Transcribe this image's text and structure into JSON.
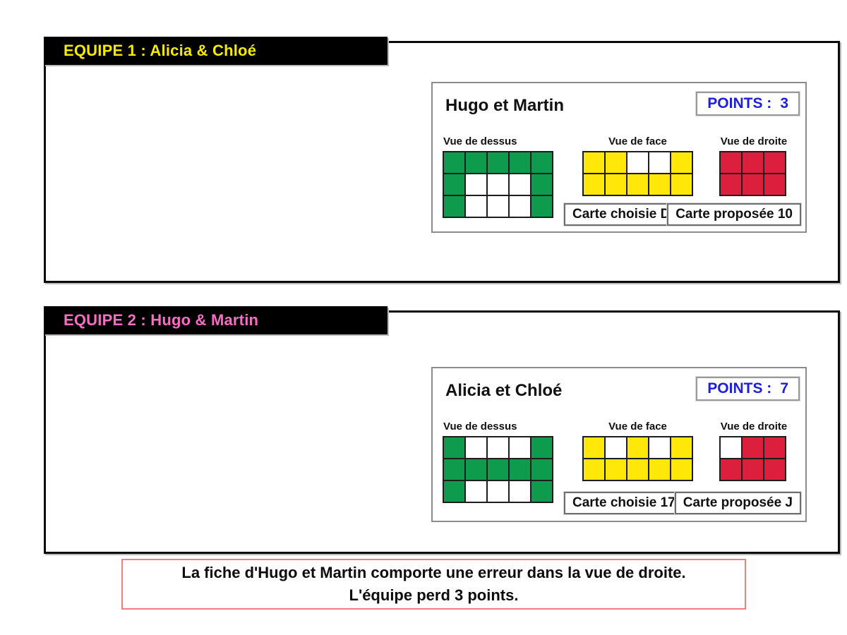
{
  "colors": {
    "banner_bg": "#000000",
    "team1_text": "#f4eb00",
    "team2_text": "#f56ec4",
    "points_text": "#1e1edb",
    "grid_green": "#0f9b4e",
    "grid_yellow": "#ffe70a",
    "grid_red": "#db1f3d",
    "empty_cell": "#ffffff",
    "message_border": "#f08080"
  },
  "teams": [
    {
      "banner": {
        "label": "EQUIPE 1 : Alicia & Chloé",
        "text_color": "#f4eb00"
      },
      "card": {
        "title": "Hugo et Martin",
        "points_label": "POINTS :",
        "points_value": "3",
        "views": [
          {
            "name": "Vue de dessus",
            "color": "#0f9b4e",
            "cols": 5,
            "rows": 3,
            "cells": [
              [
                1,
                1,
                1,
                1,
                1
              ],
              [
                1,
                0,
                0,
                0,
                1
              ],
              [
                1,
                0,
                0,
                0,
                1
              ]
            ]
          },
          {
            "name": "Vue de face",
            "color": "#ffe70a",
            "cols": 5,
            "rows": 2,
            "cells": [
              [
                1,
                1,
                0,
                0,
                1
              ],
              [
                1,
                1,
                1,
                1,
                1
              ]
            ]
          },
          {
            "name": "Vue de droite",
            "color": "#db1f3d",
            "cols": 3,
            "rows": 2,
            "cells": [
              [
                1,
                1,
                1
              ],
              [
                1,
                1,
                1
              ]
            ]
          }
        ],
        "carte_choisie": "Carte choisie D",
        "carte_proposee": "Carte proposée 10"
      }
    },
    {
      "banner": {
        "label": "EQUIPE 2 : Hugo & Martin",
        "text_color": "#f56ec4"
      },
      "card": {
        "title": "Alicia et Chloé",
        "points_label": "POINTS :",
        "points_value": "7",
        "views": [
          {
            "name": "Vue de dessus",
            "color": "#0f9b4e",
            "cols": 5,
            "rows": 3,
            "cells": [
              [
                1,
                0,
                0,
                0,
                1
              ],
              [
                1,
                1,
                1,
                1,
                1
              ],
              [
                1,
                0,
                0,
                0,
                1
              ]
            ]
          },
          {
            "name": "Vue de face",
            "color": "#ffe70a",
            "cols": 5,
            "rows": 2,
            "cells": [
              [
                1,
                0,
                1,
                0,
                1
              ],
              [
                1,
                1,
                1,
                1,
                1
              ]
            ]
          },
          {
            "name": "Vue de droite",
            "color": "#db1f3d",
            "cols": 3,
            "rows": 2,
            "cells": [
              [
                0,
                1,
                1
              ],
              [
                1,
                1,
                1
              ]
            ]
          }
        ],
        "carte_choisie": "Carte choisie 17",
        "carte_proposee": "Carte proposée J"
      }
    }
  ],
  "message": {
    "line1": "La fiche d'Hugo et Martin comporte une erreur dans la vue de droite.",
    "line2": "L'équipe perd 3 points."
  }
}
